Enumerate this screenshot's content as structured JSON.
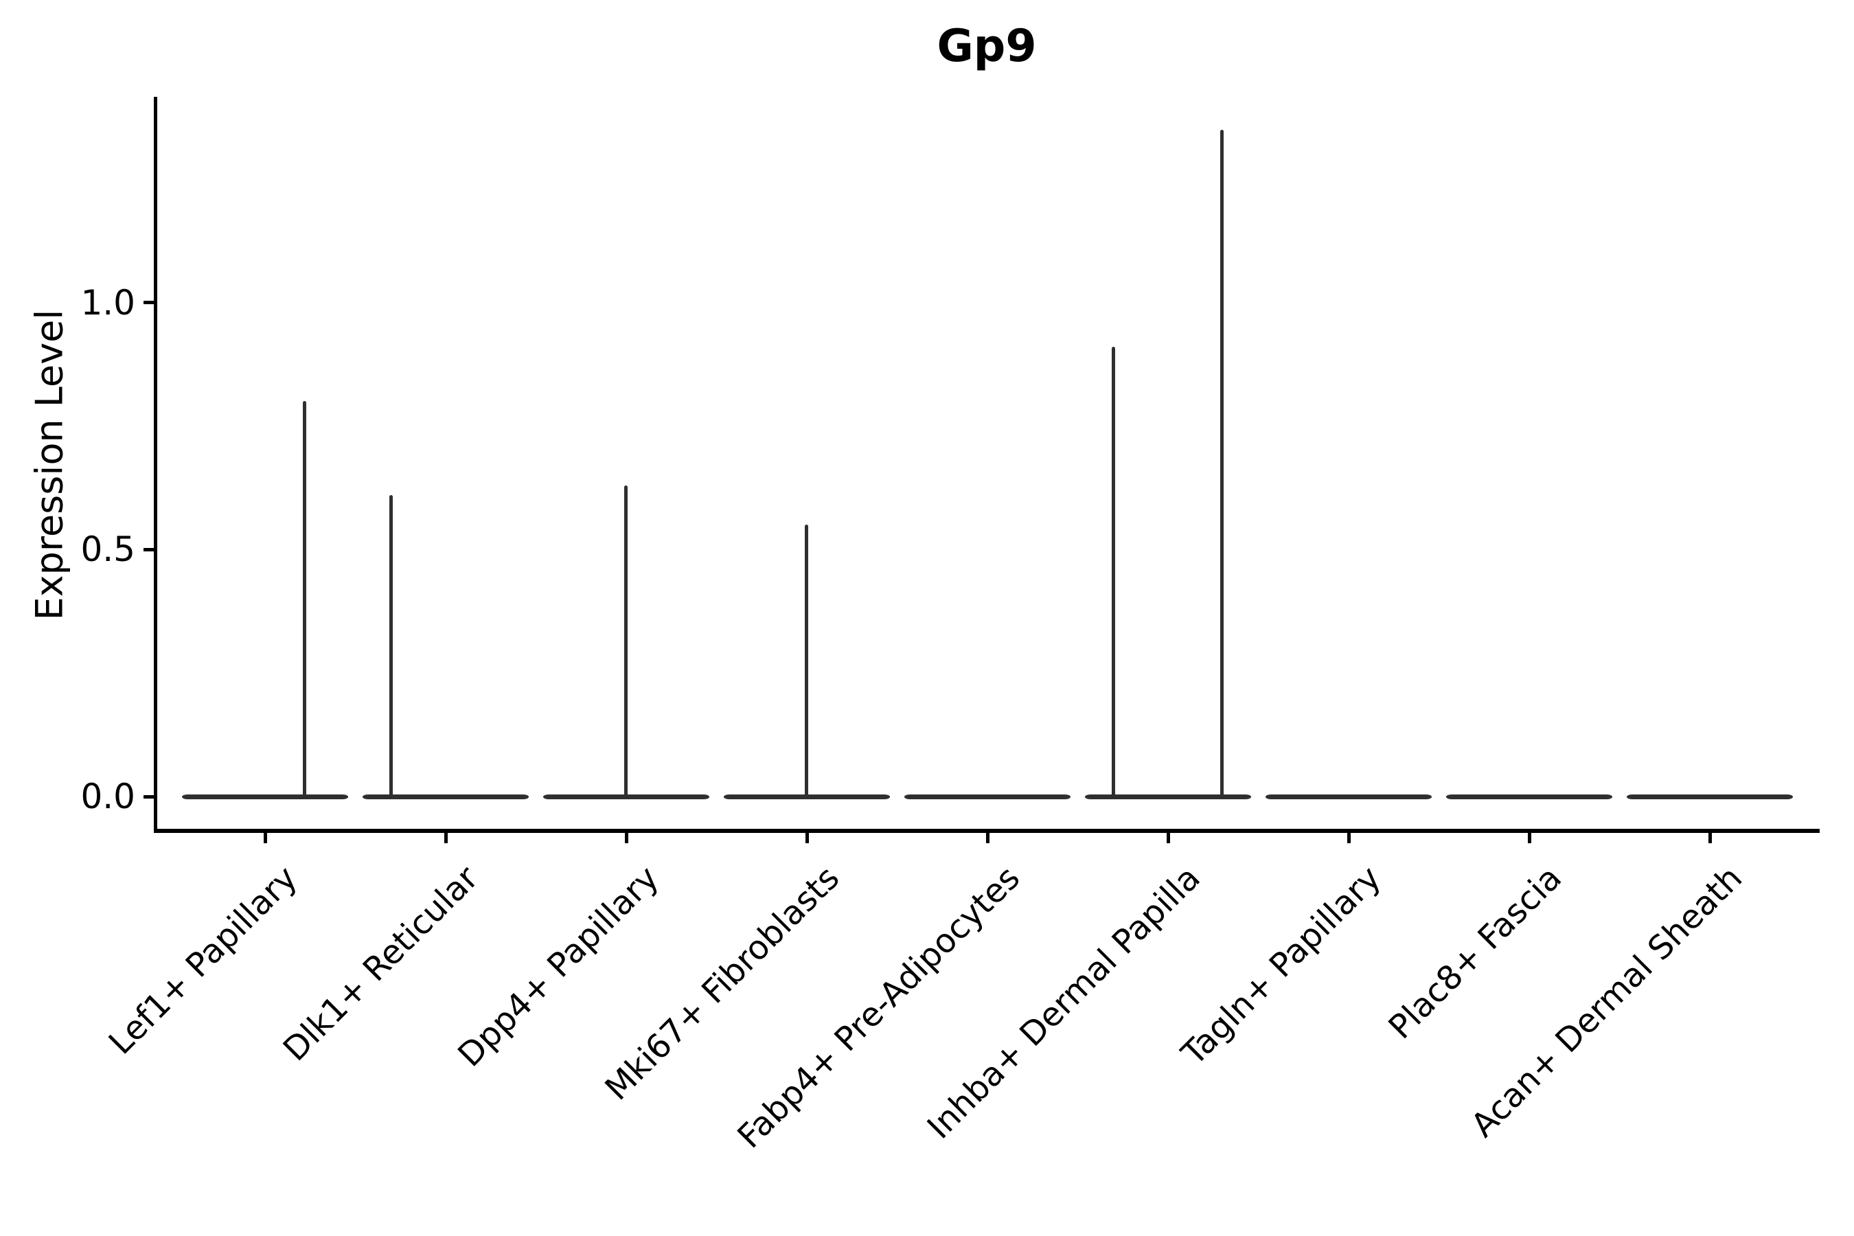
{
  "title": "Gp9",
  "y_axis": {
    "label": "Expression Level",
    "ticks": [
      {
        "label": "0.0",
        "value": 0.0
      },
      {
        "label": "0.5",
        "value": 0.5
      },
      {
        "label": "1.0",
        "value": 1.0
      }
    ]
  },
  "x_axis": {
    "categories": [
      "Lef1+ Papillary",
      "Dlk1+ Reticular",
      "Dpp4+ Papillary",
      "Mki67+ Fibroblasts",
      "Fabp4+ Pre-Adipocytes",
      "Inhba+ Dermal Papilla",
      "Tagln+ Papillary",
      "Plac8+ Fascia",
      "Acan+ Dermal Sheath"
    ]
  },
  "colors": {
    "violin": "#2f2f2f",
    "axis": "#000000",
    "background": "#ffffff"
  },
  "chart_data": {
    "type": "violin",
    "title": "Gp9",
    "xlabel": "",
    "ylabel": "Expression Level",
    "ylim": [
      0,
      1.42
    ],
    "yticks": [
      0.0,
      0.5,
      1.0
    ],
    "grid": false,
    "legend": false,
    "categories": [
      "Lef1+ Papillary",
      "Dlk1+ Reticular",
      "Dpp4+ Papillary",
      "Mki67+ Fibroblasts",
      "Fabp4+ Pre-Adipocytes",
      "Inhba+ Dermal Papilla",
      "Tagln+ Papillary",
      "Plac8+ Fascia",
      "Acan+ Dermal Sheath"
    ],
    "violins": [
      {
        "category": "Lef1+ Papillary",
        "baseline_value": 0,
        "max_expression": 0.8,
        "spikes": [
          {
            "value": 0.8,
            "dx": 57
          }
        ]
      },
      {
        "category": "Dlk1+ Reticular",
        "baseline_value": 0,
        "max_expression": 0.61,
        "spikes": [
          {
            "value": 0.61,
            "dx": -80
          }
        ]
      },
      {
        "category": "Dpp4+ Papillary",
        "baseline_value": 0,
        "max_expression": 0.63,
        "spikes": [
          {
            "value": 0.63,
            "dx": -1
          }
        ]
      },
      {
        "category": "Mki67+ Fibroblasts",
        "baseline_value": 0,
        "max_expression": 0.55,
        "spikes": [
          {
            "value": 0.55,
            "dx": -1
          }
        ]
      },
      {
        "category": "Fabp4+ Pre-Adipocytes",
        "baseline_value": 0,
        "max_expression": 0.0,
        "spikes": []
      },
      {
        "category": "Inhba+ Dermal Papilla",
        "baseline_value": 0,
        "max_expression": 1.35,
        "spikes": [
          {
            "value": 0.91,
            "dx": -80
          },
          {
            "value": 1.35,
            "dx": 78
          }
        ]
      },
      {
        "category": "Tagln+ Papillary",
        "baseline_value": 0,
        "max_expression": 0.0,
        "spikes": []
      },
      {
        "category": "Plac8+ Fascia",
        "baseline_value": 0,
        "max_expression": 0.0,
        "spikes": []
      },
      {
        "category": "Acan+ Dermal Sheath",
        "baseline_value": 0,
        "max_expression": 0.0,
        "spikes": []
      }
    ]
  }
}
